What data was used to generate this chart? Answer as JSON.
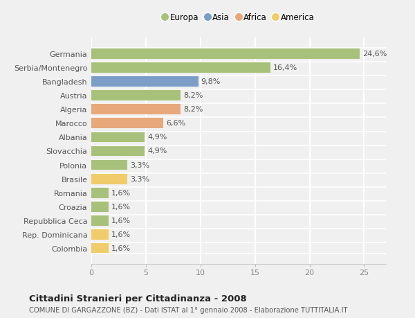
{
  "countries": [
    "Germania",
    "Serbia/Montenegro",
    "Bangladesh",
    "Austria",
    "Algeria",
    "Marocco",
    "Albania",
    "Slovacchia",
    "Polonia",
    "Brasile",
    "Romania",
    "Croazia",
    "Repubblica Ceca",
    "Rep. Dominicana",
    "Colombia"
  ],
  "values": [
    24.6,
    16.4,
    9.8,
    8.2,
    8.2,
    6.6,
    4.9,
    4.9,
    3.3,
    3.3,
    1.6,
    1.6,
    1.6,
    1.6,
    1.6
  ],
  "labels": [
    "24,6%",
    "16,4%",
    "9,8%",
    "8,2%",
    "8,2%",
    "6,6%",
    "4,9%",
    "4,9%",
    "3,3%",
    "3,3%",
    "1,6%",
    "1,6%",
    "1,6%",
    "1,6%",
    "1,6%"
  ],
  "categories": [
    "Europa",
    "Europa",
    "Asia",
    "Europa",
    "Africa",
    "Africa",
    "Europa",
    "Europa",
    "Europa",
    "America",
    "Europa",
    "Europa",
    "Europa",
    "America",
    "America"
  ],
  "colors": {
    "Europa": "#a8c17a",
    "Asia": "#7b9ec7",
    "Africa": "#e8a87c",
    "America": "#f0cc6a"
  },
  "legend_order": [
    "Europa",
    "Asia",
    "Africa",
    "America"
  ],
  "title": "Cittadini Stranieri per Cittadinanza - 2008",
  "subtitle": "COMUNE DI GARGAZZONE (BZ) - Dati ISTAT al 1° gennaio 2008 - Elaborazione TUTTITALIA.IT",
  "xlim": [
    0,
    27
  ],
  "xticks": [
    0,
    5,
    10,
    15,
    20,
    25
  ],
  "bg_color": "#f0f0f0",
  "plot_bg_color": "#f0f0f0",
  "grid_color": "#ffffff",
  "bar_height": 0.78,
  "label_fontsize": 8.0,
  "tick_fontsize": 8.0,
  "title_fontsize": 9.5,
  "subtitle_fontsize": 7.2,
  "legend_fontsize": 8.5
}
